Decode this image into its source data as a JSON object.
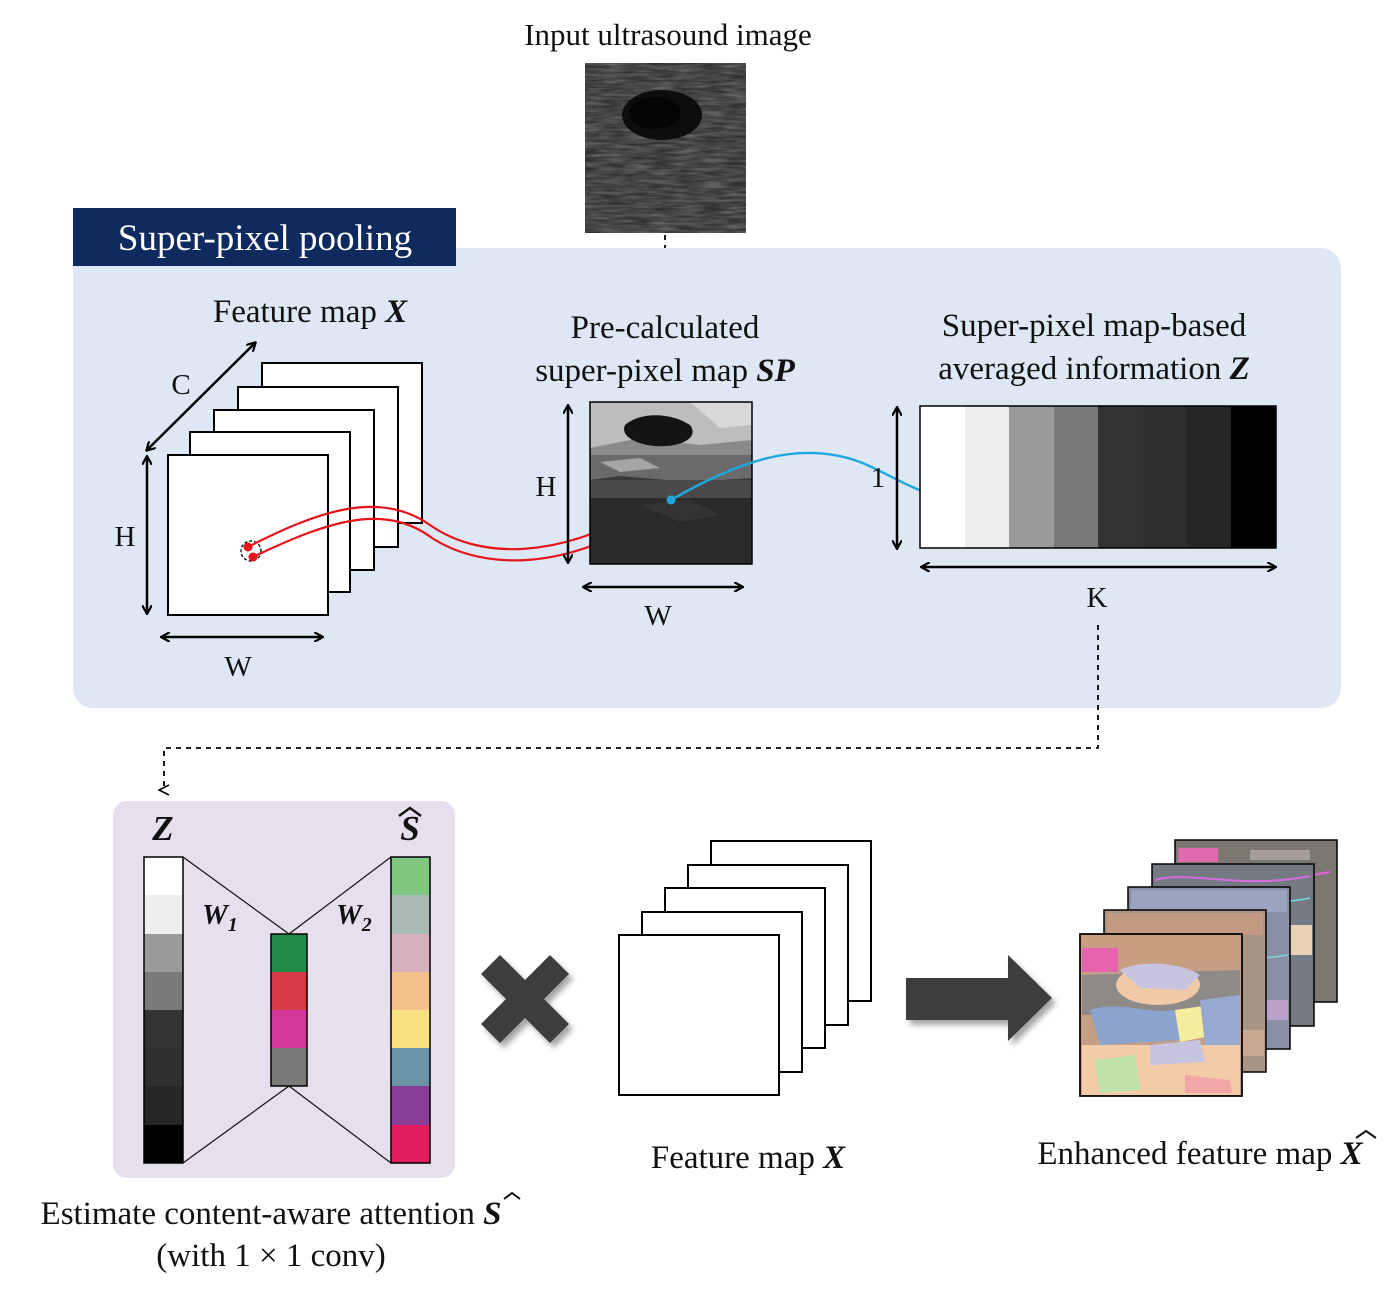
{
  "input": {
    "label": "Input ultrasound image"
  },
  "section": {
    "title": "Super-pixel pooling"
  },
  "feature_map_top": {
    "label": "Feature map ",
    "var": "X",
    "dim_c": "C",
    "dim_h": "H",
    "dim_w": "W"
  },
  "sp_map": {
    "line1": "Pre-calculated",
    "line2": "super-pixel map ",
    "var": "SP",
    "dim_h": "H",
    "dim_w": "W"
  },
  "z_map": {
    "line1": "Super-pixel map-based",
    "line2": "averaged information ",
    "var": "Z",
    "dim_1": "1",
    "dim_k": "K"
  },
  "attention": {
    "z_label": "Z",
    "s_label": "S",
    "w1": "W",
    "w1_sub": "1",
    "w2": "W",
    "w2_sub": "2",
    "caption_line1": "Estimate content-aware attention ",
    "caption_var": "S",
    "caption_line2": "(with 1 × 1 conv)"
  },
  "feature_map_bottom": {
    "label": "Feature map ",
    "var": "X"
  },
  "enhanced": {
    "label": "Enhanced feature map ",
    "var": "X"
  },
  "colors": {
    "panel_blue": "#dde8f4",
    "panel_title_bg": "#0f2a5e",
    "panel_purple": "#e6e0ee",
    "red_path": "#e8141b",
    "blue_path": "#1fa7e0",
    "z_grays": [
      "#ffffff",
      "#eeeeee",
      "#9a9a9a",
      "#7a7a7a",
      "#333333",
      "#2f2f2f",
      "#262626",
      "#000000"
    ],
    "mid_cells": [
      "#1f8a4a",
      "#d63a45",
      "#d6379a",
      "#7a7a7a"
    ],
    "s_cells": [
      "#7fc67f",
      "#a8bab2",
      "#d5b0bd",
      "#f4bf8a",
      "#f7e07e",
      "#6a93a8",
      "#8a3c99",
      "#e01d5e"
    ]
  }
}
